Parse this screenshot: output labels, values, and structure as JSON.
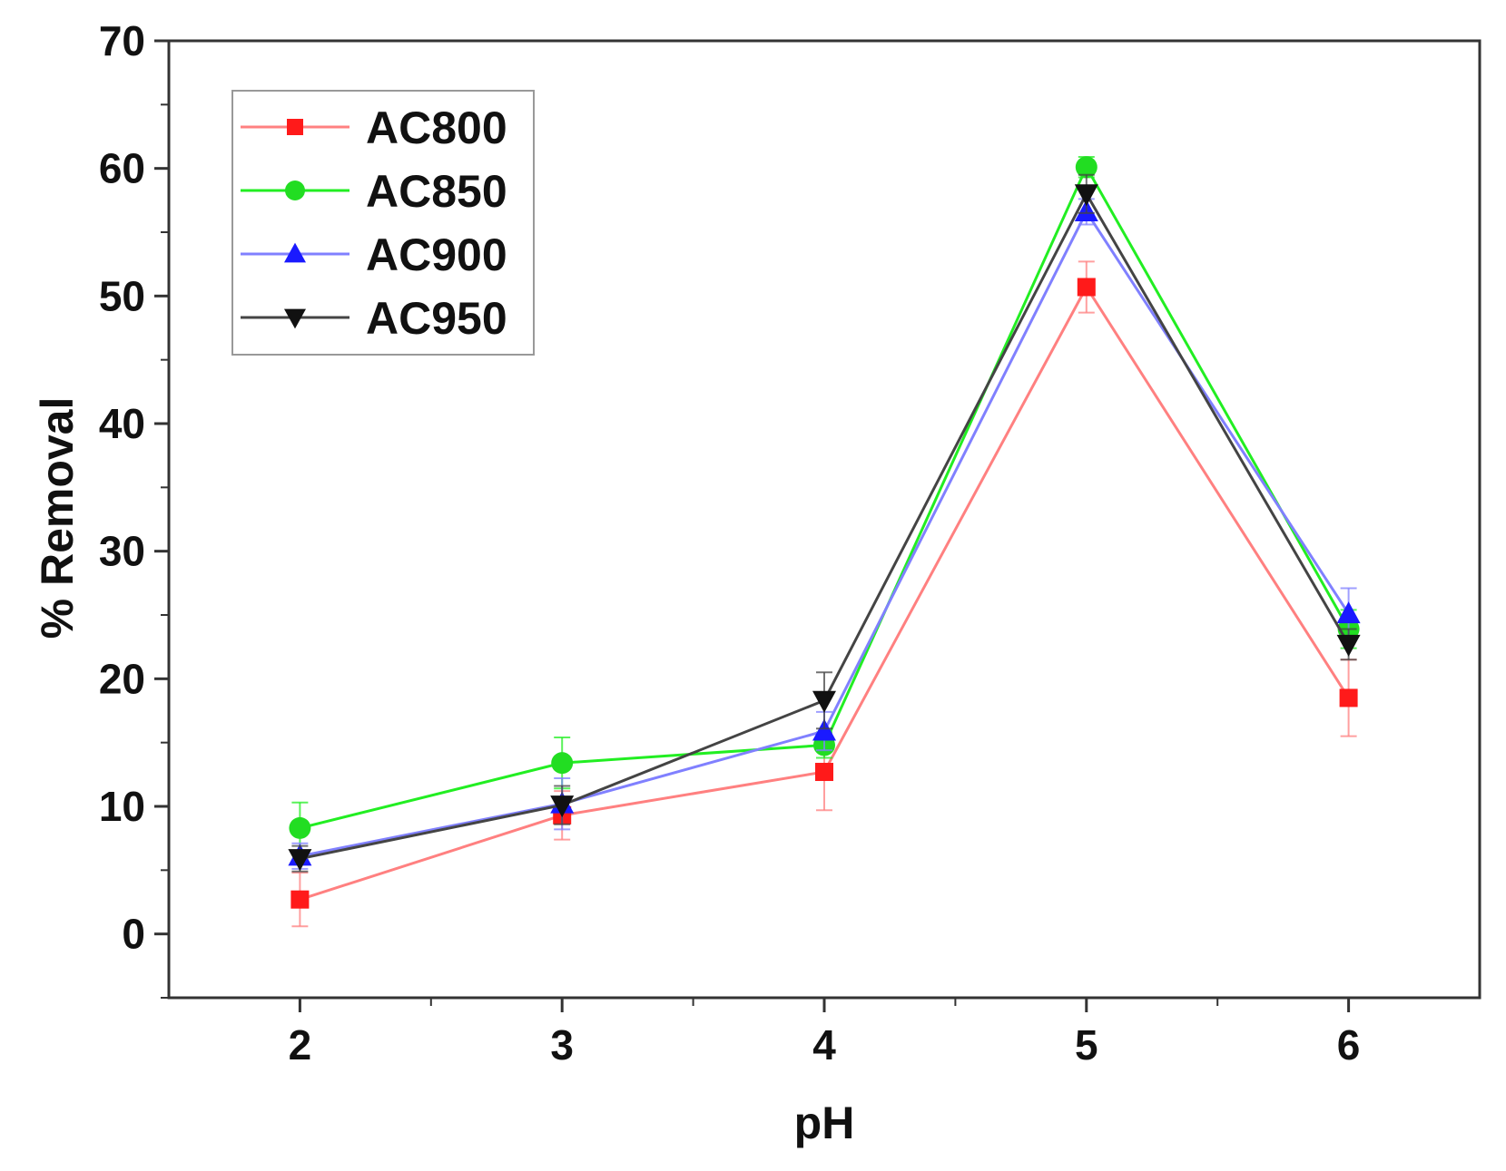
{
  "chart_data": {
    "type": "line",
    "title": "",
    "xlabel": "pH",
    "ylabel": "% Removal",
    "x": [
      2,
      3,
      4,
      5,
      6
    ],
    "xlim": [
      1.5,
      6.5
    ],
    "ylim": [
      -5,
      70
    ],
    "xticks": [
      "2",
      "3",
      "4",
      "5",
      "6"
    ],
    "yticks": [
      "0",
      "10",
      "20",
      "30",
      "40",
      "50",
      "60",
      "70"
    ],
    "legend_position": "top-left",
    "grid": false,
    "series": [
      {
        "name": "AC800",
        "color": "#ff1a1a",
        "line_color": "#ff8080",
        "marker": "square",
        "values": [
          2.7,
          9.3,
          12.7,
          50.7,
          18.5
        ],
        "errors": [
          2.1,
          1.9,
          3.0,
          2.0,
          3.0
        ]
      },
      {
        "name": "AC850",
        "color": "#22dd22",
        "line_color": "#22ee22",
        "marker": "circle",
        "values": [
          8.3,
          13.4,
          14.8,
          60.1,
          23.9
        ],
        "errors": [
          2.0,
          2.0,
          1.0,
          0.8,
          1.5
        ]
      },
      {
        "name": "AC900",
        "color": "#1a1aff",
        "line_color": "#8080ff",
        "marker": "triangle-up",
        "values": [
          6.1,
          10.2,
          15.9,
          56.6,
          25.1
        ],
        "errors": [
          1.0,
          2.0,
          1.5,
          1.0,
          2.0
        ]
      },
      {
        "name": "AC950",
        "color": "#111111",
        "line_color": "#444444",
        "marker": "triangle-down",
        "values": [
          5.9,
          10.1,
          18.3,
          58.0,
          22.7
        ],
        "errors": [
          1.0,
          1.5,
          2.2,
          1.5,
          1.2
        ]
      }
    ]
  }
}
